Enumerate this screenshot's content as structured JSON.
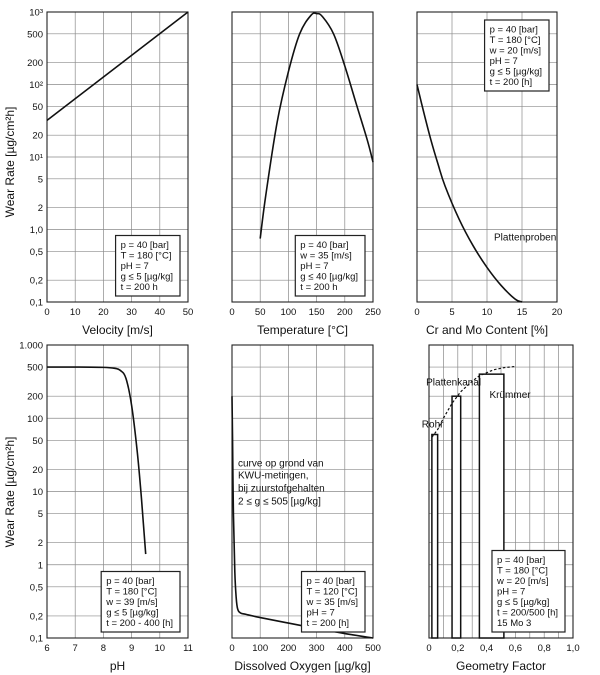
{
  "colors": {
    "ink": "#111111",
    "grid": "#8a8a8a",
    "frame": "#222222",
    "paper": "#ffffff"
  },
  "y_axis_label": "Wear Rate [µg/cm²h]",
  "chart_data": [
    {
      "id": "velocity",
      "type": "line",
      "xlabel": "Velocity [m/s]",
      "xlim": [
        0,
        50
      ],
      "xticks": [
        0,
        10,
        20,
        30,
        40,
        50
      ],
      "xtick_labels": [
        "0",
        "10",
        "20",
        "30",
        "40",
        "50"
      ],
      "ylim": [
        0.1,
        1000
      ],
      "yscale": "log",
      "ytick_labels": [
        {
          "v": 0.1,
          "t": "0,1"
        },
        {
          "v": 0.2,
          "t": "0,2"
        },
        {
          "v": 0.5,
          "t": "0,5"
        },
        {
          "v": 1,
          "t": "1,0"
        },
        {
          "v": 2,
          "t": "2"
        },
        {
          "v": 5,
          "t": "5"
        },
        {
          "v": 10,
          "t": "10¹"
        },
        {
          "v": 20,
          "t": "20"
        },
        {
          "v": 50,
          "t": "50"
        },
        {
          "v": 100,
          "t": "10²"
        },
        {
          "v": 200,
          "t": "200"
        },
        {
          "v": 500,
          "t": "500"
        },
        {
          "v": 1000,
          "t": "10³"
        }
      ],
      "series": [
        {
          "name": "wear",
          "x": [
            0,
            50
          ],
          "y": [
            32,
            1000
          ]
        }
      ],
      "info_lines": [
        "p = 40 [bar]",
        "T = 180 [°C]",
        "pH = 7",
        "g ≤ 5 [µg/kg]",
        "t = 200 h"
      ],
      "info_position": "bottom-right",
      "annotations": []
    },
    {
      "id": "temperature",
      "type": "line",
      "xlabel": "Temperature [°C]",
      "xlim": [
        0,
        250
      ],
      "xticks": [
        0,
        50,
        100,
        150,
        200,
        250
      ],
      "xtick_labels": [
        "0",
        "50",
        "100",
        "150",
        "200",
        "250"
      ],
      "ylim": [
        0.1,
        1000
      ],
      "yscale": "log",
      "series": [
        {
          "name": "wear",
          "x": [
            50,
            60,
            80,
            100,
            120,
            140,
            150,
            160,
            180,
            200,
            220,
            240,
            250
          ],
          "y": [
            0.75,
            3,
            30,
            150,
            500,
            900,
            950,
            870,
            500,
            180,
            55,
            17,
            8.5
          ]
        }
      ],
      "info_lines": [
        "p = 40 [bar]",
        "w = 35 [m/s]",
        "pH = 7",
        "g ≤ 40 [µg/kg]",
        "t = 200 h"
      ],
      "info_position": "bottom-right",
      "annotations": []
    },
    {
      "id": "cr-mo",
      "type": "line",
      "xlabel": "Cr and Mo Content [%]",
      "xlim": [
        0,
        20
      ],
      "xticks": [
        0,
        5,
        10,
        15,
        20
      ],
      "xtick_labels": [
        "0",
        "5",
        "10",
        "15",
        "20"
      ],
      "ylim": [
        0.1,
        1000
      ],
      "yscale": "log",
      "series": [
        {
          "name": "wear",
          "x": [
            0,
            1,
            2,
            3,
            4,
            6,
            8,
            10,
            12,
            14,
            15
          ],
          "y": [
            100,
            40,
            17,
            8,
            4,
            1.4,
            0.6,
            0.3,
            0.17,
            0.11,
            0.1
          ]
        }
      ],
      "info_lines": [
        "p = 40 [bar]",
        "T = 180 [°C]",
        "w = 20 [m/s]",
        "pH = 7",
        "g ≤ 5 [µg/kg]",
        "t = 200 [h]"
      ],
      "info_position": "top-right",
      "annotations": [
        {
          "text": "Plattenproben",
          "x": 11,
          "y": 0.7
        }
      ]
    },
    {
      "id": "ph",
      "type": "line",
      "xlabel": "pH",
      "xlim": [
        6,
        11
      ],
      "xticks": [
        6,
        7,
        8,
        9,
        10,
        11
      ],
      "xtick_labels": [
        "6",
        "7",
        "8",
        "9",
        "10",
        "11"
      ],
      "ylim": [
        0.1,
        1000
      ],
      "yscale": "log",
      "ytick_labels": [
        {
          "v": 0.1,
          "t": "0,1"
        },
        {
          "v": 0.2,
          "t": "0,2"
        },
        {
          "v": 0.5,
          "t": "0,5"
        },
        {
          "v": 1,
          "t": "1"
        },
        {
          "v": 2,
          "t": "2"
        },
        {
          "v": 5,
          "t": "5"
        },
        {
          "v": 10,
          "t": "10"
        },
        {
          "v": 20,
          "t": "20"
        },
        {
          "v": 50,
          "t": "50"
        },
        {
          "v": 100,
          "t": "100"
        },
        {
          "v": 200,
          "t": "200"
        },
        {
          "v": 500,
          "t": "500"
        },
        {
          "v": 1000,
          "t": "1.000"
        }
      ],
      "series": [
        {
          "name": "wear",
          "x": [
            6,
            7,
            8,
            8.4,
            8.6,
            8.8,
            9.0,
            9.2,
            9.35,
            9.45,
            9.5
          ],
          "y": [
            500,
            500,
            495,
            480,
            450,
            350,
            150,
            35,
            8,
            2.5,
            1.4
          ]
        }
      ],
      "info_lines": [
        "p = 40 [bar]",
        "T = 180 [°C]",
        "w = 39 [m/s]",
        "g ≤ 5 [µg/kg]",
        "t = 200 - 400 [h]"
      ],
      "info_position": "bottom-right",
      "annotations": []
    },
    {
      "id": "oxygen",
      "type": "line",
      "xlabel": "Dissolved Oxygen [µg/kg]",
      "xlim": [
        0,
        500
      ],
      "xticks": [
        0,
        100,
        200,
        300,
        400,
        500
      ],
      "xtick_labels": [
        "0",
        "100",
        "200",
        "300",
        "400",
        "500"
      ],
      "ylim": [
        0.1,
        1000
      ],
      "yscale": "log",
      "series": [
        {
          "name": "wear",
          "x": [
            0,
            2,
            5,
            10,
            15,
            20,
            30,
            50,
            100,
            200,
            300,
            400,
            500
          ],
          "y": [
            200,
            50,
            5,
            0.8,
            0.35,
            0.25,
            0.22,
            0.21,
            0.19,
            0.16,
            0.135,
            0.115,
            0.1
          ]
        }
      ],
      "info_lines": [
        "p = 40 [bar]",
        "T = 120 [°C]",
        "w = 35 [m/s]",
        "pH = 7",
        "t = 200 [h]"
      ],
      "info_position": "bottom-right",
      "annotations": [
        {
          "text": "curve op grond van",
          "x": 0,
          "y": 22
        },
        {
          "text": "KWU-metingen,",
          "x": 0,
          "y": 15
        },
        {
          "text": "bij zuurstofgehalten",
          "x": 0,
          "y": 10
        },
        {
          "text": "2 ≤ g ≤ 505 [µg/kg]",
          "x": 0,
          "y": 6.6
        }
      ]
    },
    {
      "id": "geometry",
      "type": "bar",
      "xlabel": "Geometry Factor",
      "xlim": [
        0,
        1
      ],
      "xticks": [
        0,
        0.2,
        0.4,
        0.6,
        0.8,
        1.0
      ],
      "xtick_labels": [
        "0",
        "0,2",
        "0,4",
        "0,6",
        "0,8",
        "1,0"
      ],
      "ylim": [
        0.1,
        1000
      ],
      "yscale": "log",
      "bars": [
        {
          "name": "Rohr",
          "x0": 0.02,
          "x1": 0.06,
          "value": 60
        },
        {
          "name": "Plattenkanal",
          "x0": 0.16,
          "x1": 0.22,
          "value": 200
        },
        {
          "name": "Krümmer",
          "x0": 0.35,
          "x1": 0.52,
          "value": 400
        }
      ],
      "envelope": {
        "x": [
          0.02,
          0.06,
          0.1,
          0.16,
          0.22,
          0.3,
          0.35,
          0.45,
          0.52,
          0.6
        ],
        "y": [
          55,
          70,
          100,
          160,
          230,
          320,
          380,
          460,
          490,
          510
        ]
      },
      "info_lines": [
        "p = 40 [bar]",
        "T = 180 [°C]",
        "w = 20 [m/s]",
        "pH = 7",
        "g ≤ 5 [µg/kg]",
        "t = 200/500 [h]",
        "15 Mo 3"
      ],
      "info_position": "bottom-right",
      "annotations": [
        {
          "text": "Rohr",
          "x": -0.05,
          "y": 75
        },
        {
          "text": "Plattenkanal",
          "x": -0.02,
          "y": 280
        },
        {
          "text": "Krümmer",
          "x": 0.42,
          "y": 190
        }
      ]
    }
  ]
}
